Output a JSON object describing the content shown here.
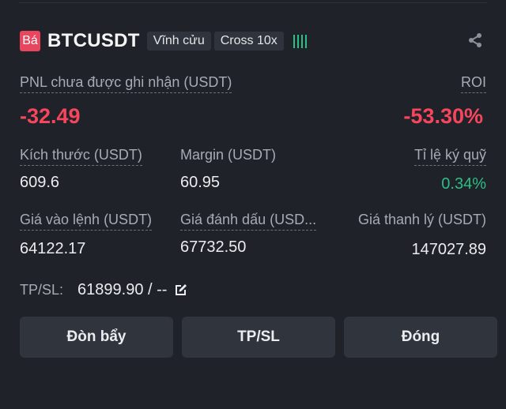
{
  "header": {
    "side_badge": "Bá",
    "symbol": "BTCUSDT",
    "tags": [
      "Vĩnh cửu",
      "Cross 10x"
    ],
    "signal_icon": "signal-bars-icon",
    "share_icon": "share-icon"
  },
  "pnl": {
    "label": "PNL chưa được ghi nhận (USDT)",
    "value": "-32.49",
    "roi_label": "ROI",
    "roi_value": "-53.30%"
  },
  "row1": {
    "size_label": "Kích thước (USDT)",
    "size_value": "609.6",
    "margin_label": "Margin (USDT)",
    "margin_value": "60.95",
    "margin_ratio_label": "Tỉ lệ ký quỹ",
    "margin_ratio_value": "0.34%"
  },
  "row2": {
    "entry_label": "Giá vào lệnh (USDT)",
    "entry_value": "64122.17",
    "mark_label": "Giá đánh dấu (USD...",
    "mark_value": "67732.50",
    "liq_label": "Giá thanh lý (USDT)",
    "liq_value": "147027.89"
  },
  "tpsl": {
    "label": "TP/SL:",
    "value": "61899.90 / --",
    "edit_icon": "edit-icon"
  },
  "buttons": {
    "leverage": "Đòn bẩy",
    "tpsl": "TP/SL",
    "close": "Đóng"
  },
  "colors": {
    "background": "#1f2228",
    "negative": "#f6465d",
    "positive": "#2ebd85",
    "button": "#30343c"
  }
}
